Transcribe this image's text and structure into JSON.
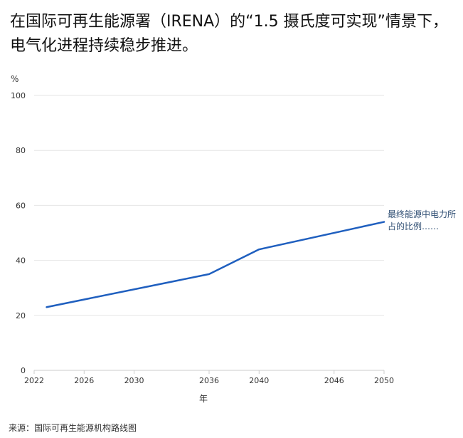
{
  "title": "在国际可再生能源署（IRENA）的“1.5 摄氏度可实现”情景下，电气化进程持续稳步推进。",
  "source": "来源：国际可再生能源机构路线图",
  "colors": {
    "line": "#1f5fbf",
    "grid": "#e6e6e6",
    "axis": "#cccccc",
    "tick_text": "#333333"
  },
  "chart_data": {
    "type": "line",
    "title": "在国际可再生能源署（IRENA）的“1.5 摄氏度可实现”情景下，电气化进程持续稳步推进。",
    "ylabel": "%",
    "xlabel": "年",
    "xlim": [
      2022,
      2050
    ],
    "ylim": [
      0,
      100
    ],
    "x_ticks": [
      2022,
      2026,
      2030,
      2036,
      2040,
      2046,
      2050
    ],
    "y_ticks": [
      0,
      20,
      40,
      60,
      80,
      100
    ],
    "grid": true,
    "series": [
      {
        "name": "最终能源中电力所占的比例……",
        "x": [
          2023,
          2036,
          2040,
          2050
        ],
        "y": [
          23,
          35,
          44,
          54
        ]
      }
    ]
  }
}
